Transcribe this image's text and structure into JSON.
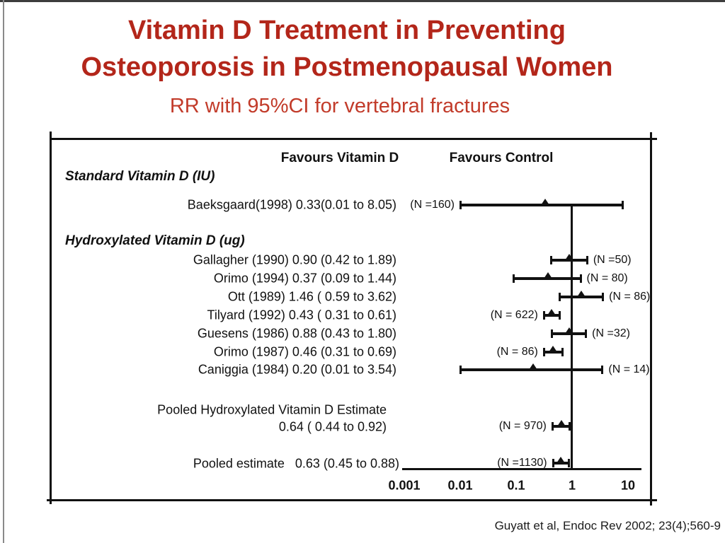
{
  "slide": {
    "title_line1": "Vitamin D Treatment in Preventing",
    "title_line2": "Osteoporosis in Postmenopausal Women",
    "subtitle": "RR with 95%CI for vertebral fractures",
    "citation": "Guyatt et al, Endoc Rev 2002; 23(4);560-9",
    "colors": {
      "title_red": "#b3261a",
      "subtitle_red": "#c23b2a",
      "plot_ink": "#111111",
      "background": "#ffffff"
    }
  },
  "chart_data": {
    "type": "scatter",
    "subtype": "forest plot: relative risk (RR) with 95% CI on log10 x-scale",
    "title": "RR with 95%CI for vertebral fractures",
    "column_headers": [
      "Favours Vitamin D",
      "Favours Control"
    ],
    "x_axis": {
      "scale": "log10",
      "ticks": [
        "0.001",
        "0.01",
        "0.1",
        "1",
        "10"
      ],
      "range": [
        0.001,
        10
      ],
      "reference_value": 1
    },
    "legend": "triangle = point estimate; horizontal bar = 95% CI; vertical line = RR 1",
    "groups": [
      {
        "name": "Standard Vitamin D (IU)",
        "studies": [
          {
            "display": "Baeksgaard(1998) 0.33(0.01 to 8.05)",
            "study": "Baeksgaard",
            "year": "1998",
            "rr": 0.33,
            "ci_low": 0.01,
            "ci_high": 8.05,
            "n": 160,
            "n_label": "(N =160)",
            "n_side": "left"
          }
        ]
      },
      {
        "name": "Hydroxylated Vitamin D (ug)",
        "studies": [
          {
            "display": "Gallagher (1990) 0.90 (0.42 to 1.89)",
            "study": "Gallagher",
            "year": "1990",
            "rr": 0.9,
            "ci_low": 0.42,
            "ci_high": 1.89,
            "n": 50,
            "n_label": "(N =50)",
            "n_side": "right"
          },
          {
            "display": "Orimo (1994) 0.37 (0.09 to 1.44)",
            "study": "Orimo",
            "year": "1994",
            "rr": 0.37,
            "ci_low": 0.09,
            "ci_high": 1.44,
            "n": 80,
            "n_label": "(N = 80)",
            "n_side": "right"
          },
          {
            "display": "Ott (1989) 1.46 ( 0.59 to 3.62)",
            "study": "Ott",
            "year": "1989",
            "rr": 1.46,
            "ci_low": 0.59,
            "ci_high": 3.62,
            "n": 86,
            "n_label": "(N = 86)",
            "n_side": "right"
          },
          {
            "display": "Tilyard (1992) 0.43 ( 0.31 to 0.61)",
            "study": "Tilyard",
            "year": "1992",
            "rr": 0.43,
            "ci_low": 0.31,
            "ci_high": 0.61,
            "n": 622,
            "n_label": "(N = 622)",
            "n_side": "left"
          },
          {
            "display": "Guesens (1986) 0.88 (0.43 to 1.80)",
            "study": "Guesens",
            "year": "1986",
            "rr": 0.88,
            "ci_low": 0.43,
            "ci_high": 1.8,
            "n": 32,
            "n_label": "(N =32)",
            "n_side": "right"
          },
          {
            "display": "Orimo (1987) 0.46 (0.31 to 0.69)",
            "study": "Orimo",
            "year": "1987",
            "rr": 0.46,
            "ci_low": 0.31,
            "ci_high": 0.69,
            "n": 86,
            "n_label": "(N = 86)",
            "n_side": "left"
          },
          {
            "display": "Caniggia (1984) 0.20 (0.01 to 3.54)",
            "study": "Caniggia",
            "year": "1984",
            "rr": 0.2,
            "ci_low": 0.01,
            "ci_high": 3.54,
            "n": 14,
            "n_label": "(N = 14)",
            "n_side": "right"
          }
        ]
      }
    ],
    "pooled": [
      {
        "display_line1": "Pooled Hydroxylated Vitamin D Estimate",
        "display_line2": "0.64 ( 0.44 to 0.92)",
        "rr": 0.64,
        "ci_low": 0.44,
        "ci_high": 0.92,
        "n": 970,
        "n_label": "(N = 970)",
        "n_side": "left"
      },
      {
        "display": "Pooled estimate   0.63 (0.45 to 0.88)",
        "rr": 0.63,
        "ci_low": 0.45,
        "ci_high": 0.88,
        "n": 1130,
        "n_label": "(N =1130)",
        "n_side": "left"
      }
    ]
  }
}
